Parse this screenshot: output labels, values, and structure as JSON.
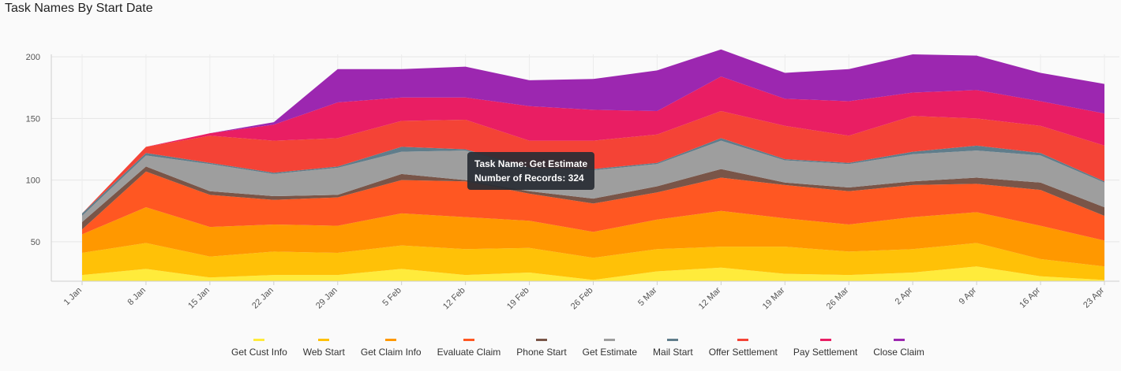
{
  "title": "Task Names By Start Date",
  "tooltip": {
    "line1": "Task Name: Get Estimate",
    "line2": "Number of Records: 324"
  },
  "chart_data": {
    "type": "area",
    "stacked": true,
    "title": "Task Names By Start Date",
    "xlabel": "",
    "ylabel": "",
    "ylim": [
      18,
      202
    ],
    "yticks": [
      50,
      100,
      150,
      200
    ],
    "grid": true,
    "legend_position": "bottom",
    "categories": [
      "1 Jan",
      "8 Jan",
      "15 Jan",
      "22 Jan",
      "29 Jan",
      "5 Feb",
      "12 Feb",
      "19 Feb",
      "26 Feb",
      "5 Mar",
      "12 Mar",
      "19 Mar",
      "26 Mar",
      "2 Apr",
      "9 Apr",
      "16 Apr",
      "23 Apr"
    ],
    "series": [
      {
        "name": "Get Cust Info",
        "color": "#ffeb3b",
        "values": [
          23,
          28,
          21,
          23,
          23,
          28,
          23,
          25,
          19,
          26,
          29,
          24,
          23,
          25,
          30,
          22,
          19
        ]
      },
      {
        "name": "Web Start",
        "color": "#ffc107",
        "values": [
          18,
          21,
          17,
          19,
          18,
          19,
          21,
          20,
          18,
          18,
          17,
          22,
          19,
          19,
          19,
          14,
          11
        ]
      },
      {
        "name": "Get Claim Info",
        "color": "#ff9800",
        "values": [
          15,
          29,
          24,
          22,
          22,
          26,
          26,
          22,
          21,
          24,
          29,
          23,
          22,
          26,
          25,
          27,
          21
        ]
      },
      {
        "name": "Evaluate Claim",
        "color": "#ff5722",
        "values": [
          4,
          29,
          26,
          20,
          23,
          27,
          29,
          22,
          23,
          22,
          27,
          27,
          27,
          26,
          23,
          29,
          20
        ]
      },
      {
        "name": "Phone Start",
        "color": "#795548",
        "values": [
          6,
          4,
          3,
          3,
          2,
          5,
          1,
          2,
          4,
          5,
          7,
          2,
          3,
          3,
          5,
          6,
          7
        ]
      },
      {
        "name": "Get Estimate",
        "color": "#9e9e9e",
        "values": [
          5,
          9,
          22,
          18,
          22,
          18,
          24,
          18,
          23,
          18,
          23,
          18,
          19,
          22,
          22,
          22,
          20
        ]
      },
      {
        "name": "Mail Start",
        "color": "#607d8b",
        "values": [
          2,
          2,
          1,
          1,
          1,
          4,
          1,
          1,
          1,
          1,
          2,
          1,
          1,
          2,
          4,
          2,
          1
        ]
      },
      {
        "name": "Offer Settlement",
        "color": "#f44336",
        "values": [
          0,
          5,
          22,
          26,
          23,
          21,
          24,
          22,
          23,
          23,
          22,
          27,
          22,
          29,
          22,
          22,
          29
        ]
      },
      {
        "name": "Pay Settlement",
        "color": "#e91e63",
        "values": [
          0,
          0,
          2,
          13,
          29,
          19,
          18,
          28,
          25,
          19,
          28,
          22,
          28,
          19,
          23,
          20,
          26
        ]
      },
      {
        "name": "Close Claim",
        "color": "#9c27b0",
        "values": [
          0,
          0,
          0,
          2,
          27,
          23,
          25,
          21,
          25,
          33,
          22,
          21,
          26,
          31,
          28,
          23,
          24
        ]
      }
    ]
  }
}
